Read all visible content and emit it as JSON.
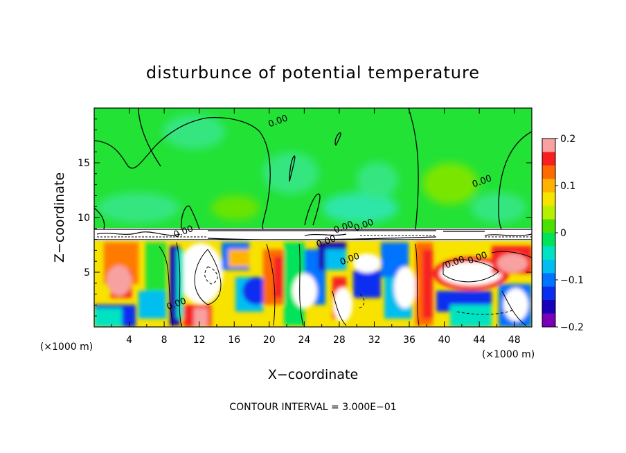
{
  "chart_data": {
    "type": "heatmap",
    "title": "disturbunce of potential temperature",
    "xlabel": "X−coordinate",
    "ylabel": "Z−coordinate",
    "x_unit": "(×1000 m)",
    "footer": "CONTOUR INTERVAL = 3.000E−01",
    "xlim": [
      0,
      50
    ],
    "ylim": [
      0,
      20
    ],
    "x_ticks": [
      4,
      8,
      12,
      16,
      20,
      24,
      28,
      32,
      36,
      40,
      44,
      48
    ],
    "y_ticks": [
      5,
      10,
      15
    ],
    "colorbar": {
      "range": [
        -0.2,
        0.2
      ],
      "ticks": [
        0.2,
        0.1,
        0,
        -0.1,
        -0.2
      ],
      "tick_labels": [
        "0.2",
        "0.1",
        "0",
        "−0.1",
        "−0.2"
      ],
      "colors": [
        "#f7a1a1",
        "#f72020",
        "#ff6a00",
        "#ffb300",
        "#f5e400",
        "#b6ef00",
        "#4be000",
        "#00e35a",
        "#00e3c2",
        "#00bff0",
        "#0073ff",
        "#0a2ef0",
        "#1800b8",
        "#7a00b8"
      ]
    },
    "contour_labels": [
      {
        "text": "0.00",
        "x": 21,
        "y": 18.8
      },
      {
        "text": "0.00",
        "x": 44.3,
        "y": 13.3
      },
      {
        "text": "0.00",
        "x": 28.5,
        "y": 9.1
      },
      {
        "text": "0.00",
        "x": 30.8,
        "y": 9.3
      },
      {
        "text": "0.00",
        "x": 26.5,
        "y": 7.8
      },
      {
        "text": "0.00",
        "x": 29.2,
        "y": 6.2
      },
      {
        "text": "0.00",
        "x": 41.2,
        "y": 5.9
      },
      {
        "text": "0.00",
        "x": 43.8,
        "y": 6.3
      },
      {
        "text": "0.00",
        "x": 10.2,
        "y": 8.7
      },
      {
        "text": "0.00",
        "x": 9.4,
        "y": 2.1
      }
    ]
  }
}
